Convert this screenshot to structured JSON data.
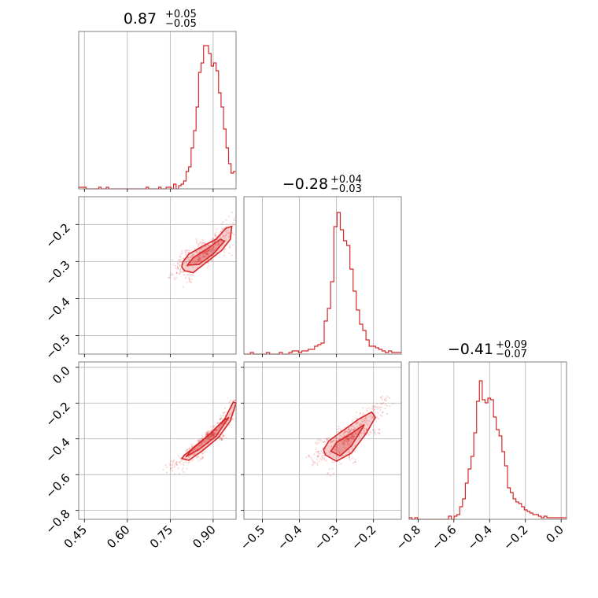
{
  "chart_data": {
    "type": "corner",
    "color": "#d62728",
    "params": [
      {
        "title_median": "0.87",
        "title_upper": "+0.05",
        "title_lower": "−0.05",
        "range": [
          0.43,
          0.98
        ],
        "ticks": [
          0.45,
          0.6,
          0.75,
          0.9
        ],
        "tick_labels": [
          "0.45",
          "0.60",
          "0.75",
          "0.90"
        ]
      },
      {
        "title_median": "−0.28",
        "title_upper": "+0.04",
        "title_lower": "−0.03",
        "range": [
          -0.55,
          -0.125
        ],
        "ticks": [
          -0.5,
          -0.4,
          -0.3,
          -0.2
        ],
        "tick_labels": [
          "−0.5",
          "−0.4",
          "−0.3",
          "−0.2"
        ],
        "y_ticks": [
          -0.5,
          -0.4,
          -0.3,
          -0.2
        ],
        "y_tick_labels": [
          "−0.5",
          "−0.4",
          "−0.3",
          "−0.2"
        ]
      },
      {
        "title_median": "−0.41",
        "title_upper": "+0.09",
        "title_lower": "−0.07",
        "range": [
          -0.85,
          0.03
        ],
        "ticks": [
          -0.8,
          -0.6,
          -0.4,
          -0.2,
          0.0
        ],
        "tick_labels": [
          "−0.8",
          "−0.6",
          "−0.4",
          "−0.2",
          "0.0"
        ],
        "y_ticks": [
          -0.8,
          -0.6,
          -0.4,
          -0.2,
          0.0
        ],
        "y_tick_labels": [
          "−0.8",
          "−0.6",
          "−0.4",
          "−0.2",
          "0.0"
        ]
      }
    ],
    "histograms": [
      {
        "values": [
          0.01,
          0.01,
          0.01,
          0,
          0,
          0,
          0,
          0,
          0.01,
          0,
          0,
          0.01,
          0,
          0,
          0,
          0,
          0,
          0,
          0,
          0,
          0,
          0,
          0,
          0,
          0,
          0,
          0,
          0.01,
          0,
          0,
          0,
          0,
          0.01,
          0,
          0,
          0.01,
          0.01,
          0,
          0.03,
          0,
          0.02,
          0.03,
          0.05,
          0.11,
          0.14,
          0.26,
          0.37,
          0.52,
          0.74,
          0.8,
          0.91,
          0.91,
          0.86,
          0.78,
          0.8,
          0.75,
          0.61,
          0.52,
          0.38,
          0.26,
          0.16,
          0.1,
          0.11
        ]
      },
      {
        "values": [
          0,
          0,
          0.01,
          0,
          0,
          0,
          0,
          0.01,
          0,
          0,
          0,
          0.01,
          0,
          0,
          0.01,
          0.02,
          0.02,
          0.01,
          0.02,
          0.02,
          0.03,
          0.03,
          0.05,
          0.06,
          0.07,
          0.21,
          0.29,
          0.46,
          0.81,
          0.9,
          0.79,
          0.72,
          0.69,
          0.54,
          0.4,
          0.28,
          0.19,
          0.15,
          0.09,
          0.05,
          0.05,
          0.04,
          0.03,
          0.02,
          0.01,
          0.02,
          0.01,
          0.01,
          0.01
        ]
      },
      {
        "values": [
          0.01,
          0,
          0.01,
          0,
          0,
          0,
          0,
          0,
          0,
          0,
          0,
          0,
          0,
          0,
          0.02,
          0,
          0.02,
          0.03,
          0.08,
          0.13,
          0.23,
          0.32,
          0.4,
          0.55,
          0.75,
          0.88,
          0.76,
          0.74,
          0.77,
          0.76,
          0.65,
          0.57,
          0.53,
          0.43,
          0.34,
          0.2,
          0.17,
          0.13,
          0.11,
          0.1,
          0.08,
          0.06,
          0.05,
          0.04,
          0.03,
          0.03,
          0.02,
          0.01,
          0.02,
          0.01,
          0.01,
          0.01,
          0.01,
          0.01,
          0.01,
          0.01
        ]
      }
    ],
    "contours_2d": {
      "x1_vs_x0": {
        "points": [
          [
            0.79,
            -0.315
          ],
          [
            0.8,
            -0.325
          ],
          [
            0.83,
            -0.33
          ],
          [
            0.88,
            -0.3
          ],
          [
            0.93,
            -0.27
          ],
          [
            0.96,
            -0.24
          ],
          [
            0.965,
            -0.205
          ],
          [
            0.945,
            -0.21
          ],
          [
            0.91,
            -0.24
          ],
          [
            0.86,
            -0.26
          ],
          [
            0.815,
            -0.28
          ],
          [
            0.795,
            -0.3
          ]
        ],
        "inner": [
          [
            0.81,
            -0.31
          ],
          [
            0.85,
            -0.308
          ],
          [
            0.9,
            -0.28
          ],
          [
            0.94,
            -0.245
          ],
          [
            0.925,
            -0.24
          ],
          [
            0.88,
            -0.265
          ],
          [
            0.83,
            -0.29
          ]
        ]
      },
      "x2_vs_x0": {
        "points": [
          [
            0.79,
            -0.51
          ],
          [
            0.815,
            -0.52
          ],
          [
            0.86,
            -0.47
          ],
          [
            0.92,
            -0.39
          ],
          [
            0.96,
            -0.3
          ],
          [
            0.98,
            -0.2
          ],
          [
            0.97,
            -0.195
          ],
          [
            0.94,
            -0.29
          ],
          [
            0.89,
            -0.37
          ],
          [
            0.84,
            -0.44
          ],
          [
            0.8,
            -0.49
          ]
        ],
        "inner": [
          [
            0.805,
            -0.5
          ],
          [
            0.85,
            -0.46
          ],
          [
            0.91,
            -0.385
          ],
          [
            0.955,
            -0.28
          ],
          [
            0.935,
            -0.3
          ],
          [
            0.88,
            -0.385
          ],
          [
            0.83,
            -0.45
          ]
        ]
      },
      "x2_vs_x1": {
        "points": [
          [
            -0.33,
            -0.49
          ],
          [
            -0.3,
            -0.525
          ],
          [
            -0.26,
            -0.48
          ],
          [
            -0.22,
            -0.37
          ],
          [
            -0.195,
            -0.28
          ],
          [
            -0.205,
            -0.25
          ],
          [
            -0.24,
            -0.29
          ],
          [
            -0.28,
            -0.35
          ],
          [
            -0.32,
            -0.41
          ],
          [
            -0.335,
            -0.46
          ]
        ],
        "inner": [
          [
            -0.315,
            -0.47
          ],
          [
            -0.29,
            -0.495
          ],
          [
            -0.26,
            -0.44
          ],
          [
            -0.23,
            -0.34
          ],
          [
            -0.225,
            -0.32
          ],
          [
            -0.26,
            -0.37
          ],
          [
            -0.3,
            -0.42
          ]
        ]
      }
    }
  }
}
